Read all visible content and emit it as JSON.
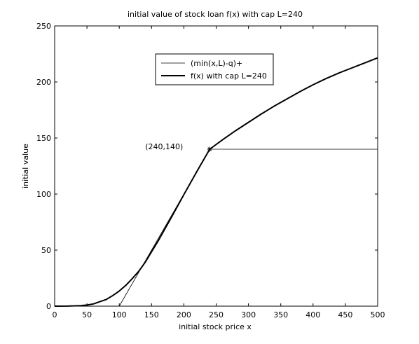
{
  "chart_data": {
    "type": "line",
    "title": "initial value of stock loan f(x) with cap L=240",
    "xlabel": "initial stock price x",
    "ylabel": "initial value",
    "xlim": [
      0,
      500
    ],
    "ylim": [
      0,
      250
    ],
    "xticks": [
      0,
      50,
      100,
      150,
      200,
      250,
      300,
      350,
      400,
      450,
      500
    ],
    "yticks": [
      0,
      50,
      100,
      150,
      200,
      250
    ],
    "grid": false,
    "legend_position": "top-center",
    "series": [
      {
        "name": "(min(x,L)-q)+",
        "style": "thin",
        "color": "#000000",
        "x": [
          0,
          100,
          240,
          500
        ],
        "y": [
          0,
          0,
          140,
          140
        ]
      },
      {
        "name": "f(x) with cap L=240",
        "style": "thick",
        "color": "#000000",
        "x": [
          0,
          20,
          40,
          50,
          60,
          70,
          80,
          90,
          100,
          110,
          120,
          130,
          140,
          150,
          160,
          180,
          200,
          220,
          240,
          260,
          280,
          300,
          320,
          340,
          360,
          380,
          400,
          420,
          440,
          460,
          480,
          500
        ],
        "y": [
          0,
          0.1,
          0.5,
          1,
          2,
          4,
          6,
          9.5,
          13.5,
          18.5,
          24.5,
          31,
          39,
          48.5,
          58,
          78.5,
          99.5,
          120,
          140,
          148.5,
          156.5,
          164,
          171.5,
          178.5,
          185,
          191.5,
          197.5,
          203,
          208,
          212.5,
          217,
          221.5
        ]
      }
    ],
    "annotations": [
      {
        "text": "(240,140)",
        "x": 240,
        "y": 140
      }
    ]
  }
}
